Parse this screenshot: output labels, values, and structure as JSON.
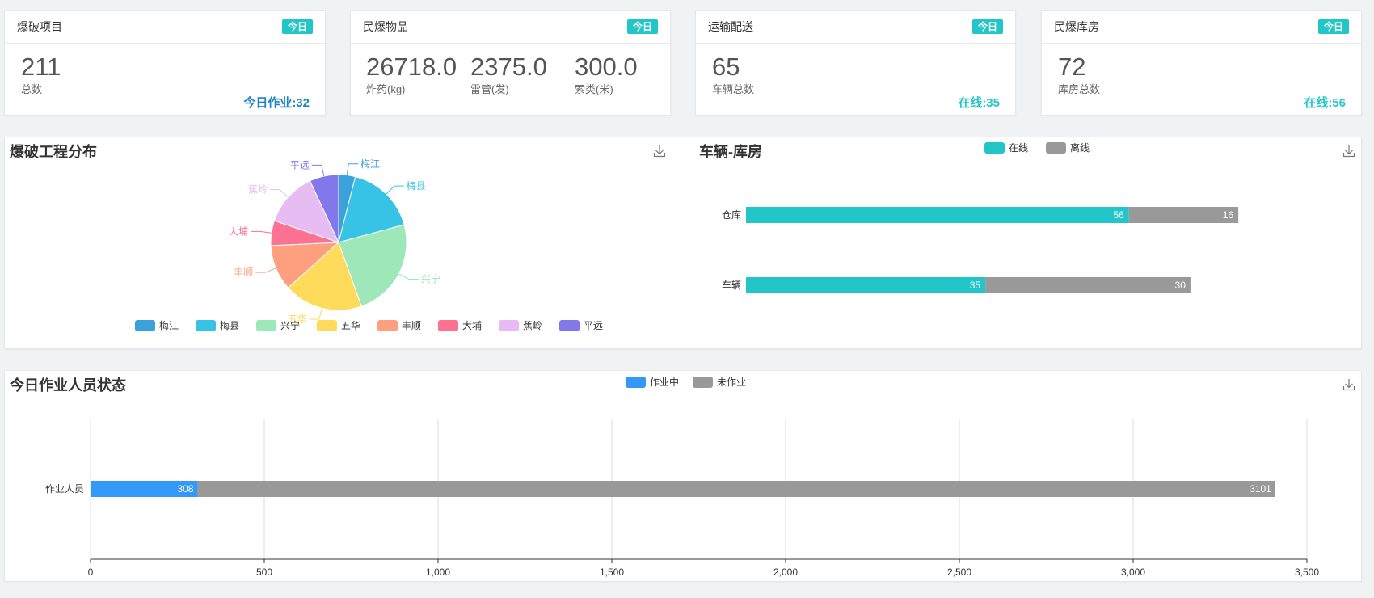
{
  "cards": [
    {
      "title": "爆破项目",
      "badge": "今日",
      "stats": [
        {
          "num": "211",
          "label": "总数"
        }
      ],
      "extra": "今日作业:32",
      "extra_color": "#1c84c6"
    },
    {
      "title": "民爆物品",
      "badge": "今日",
      "stats": [
        {
          "num": "26718.0",
          "label": "炸药(kg)"
        },
        {
          "num": "2375.0",
          "label": "雷管(发)"
        },
        {
          "num": "300.0",
          "label": "索类(米)"
        }
      ],
      "extra": "",
      "extra_color": "#23c6c8"
    },
    {
      "title": "运输配送",
      "badge": "今日",
      "stats": [
        {
          "num": "65",
          "label": "车辆总数"
        }
      ],
      "extra": "在线:35",
      "extra_color": "#23c6c8"
    },
    {
      "title": "民爆库房",
      "badge": "今日",
      "stats": [
        {
          "num": "72",
          "label": "库房总数"
        }
      ],
      "extra": "在线:56",
      "extra_color": "#23c6c8"
    }
  ],
  "pie_panel": {
    "title": "爆破工程分布"
  },
  "bar_panel": {
    "title": "车辆-库房"
  },
  "staff_panel": {
    "title": "今日作业人员状态"
  },
  "download_icon": "download-icon",
  "chart_data": [
    {
      "type": "pie",
      "labels": [
        "梅江",
        "梅县",
        "兴宁",
        "五华",
        "丰顺",
        "大埔",
        "蕉岭",
        "平远"
      ],
      "values": [
        4,
        17,
        24,
        19,
        11,
        6,
        13,
        7
      ],
      "colors": [
        "#3ba1db",
        "#36c3e6",
        "#9de7b8",
        "#fedb5b",
        "#fe9f7f",
        "#fb7293",
        "#e7bcf3",
        "#8378ea"
      ],
      "legend_position": "bottom"
    },
    {
      "type": "bar",
      "orientation": "horizontal",
      "stacked": true,
      "categories": [
        "车辆",
        "仓库"
      ],
      "series": [
        {
          "name": "在线",
          "values": [
            35,
            56
          ],
          "color": "#23c6c8"
        },
        {
          "name": "离线",
          "values": [
            30,
            16
          ],
          "color": "#999999"
        }
      ],
      "legend_position": "top-center"
    },
    {
      "type": "bar",
      "orientation": "horizontal",
      "stacked": true,
      "categories": [
        "作业人员"
      ],
      "series": [
        {
          "name": "作业中",
          "values": [
            308
          ],
          "color": "#3398f7"
        },
        {
          "name": "未作业",
          "values": [
            3101
          ],
          "color": "#999999"
        }
      ],
      "xlim": [
        0,
        3500
      ],
      "xticks": [
        "0",
        "500",
        "1,000",
        "1,500",
        "2,000",
        "2,500",
        "3,000",
        "3,500"
      ],
      "grid": true,
      "legend_position": "top-center"
    }
  ]
}
